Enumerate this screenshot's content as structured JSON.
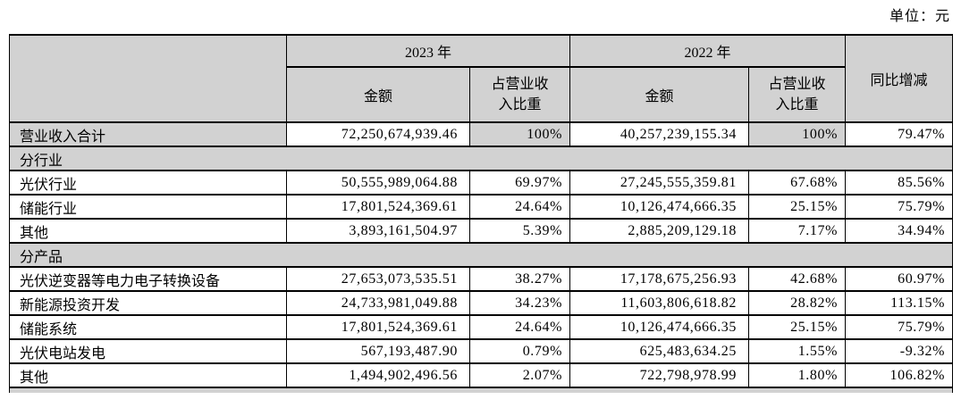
{
  "unit_label": "单位：元",
  "colors": {
    "shaded_bg": "#d2d2d2",
    "border": "#000000",
    "text": "#000000",
    "page_bg": "#ffffff"
  },
  "table": {
    "header": {
      "year_2023": "2023 年",
      "year_2022": "2022 年",
      "amount_2023": "金额",
      "share_2023": "占营业收\n入比重",
      "amount_2022": "金额",
      "share_2022": "占营业收\n入比重",
      "yoy": "同比增减"
    },
    "rows": [
      {
        "type": "data",
        "emphasis": true,
        "label": "营业收入合计",
        "amount_2023": "72,250,674,939.46",
        "share_2023": "100%",
        "amount_2022": "40,257,239,155.34",
        "share_2022": "100%",
        "yoy": "79.47%"
      },
      {
        "type": "section",
        "label": "分行业"
      },
      {
        "type": "data",
        "label": "光伏行业",
        "amount_2023": "50,555,989,064.88",
        "share_2023": "69.97%",
        "amount_2022": "27,245,555,359.81",
        "share_2022": "67.68%",
        "yoy": "85.56%"
      },
      {
        "type": "data",
        "label": "储能行业",
        "amount_2023": "17,801,524,369.61",
        "share_2023": "24.64%",
        "amount_2022": "10,126,474,666.35",
        "share_2022": "25.15%",
        "yoy": "75.79%"
      },
      {
        "type": "data",
        "label": "其他",
        "amount_2023": "3,893,161,504.97",
        "share_2023": "5.39%",
        "amount_2022": "2,885,209,129.18",
        "share_2022": "7.17%",
        "yoy": "34.94%"
      },
      {
        "type": "section",
        "label": "分产品"
      },
      {
        "type": "data",
        "label": "光伏逆变器等电力电子转换设备",
        "amount_2023": "27,653,073,535.51",
        "share_2023": "38.27%",
        "amount_2022": "17,178,675,256.93",
        "share_2022": "42.68%",
        "yoy": "60.97%"
      },
      {
        "type": "data",
        "label": "新能源投资开发",
        "amount_2023": "24,733,981,049.88",
        "share_2023": "34.23%",
        "amount_2022": "11,603,806,618.82",
        "share_2022": "28.82%",
        "yoy": "113.15%"
      },
      {
        "type": "data",
        "label": "储能系统",
        "amount_2023": "17,801,524,369.61",
        "share_2023": "24.64%",
        "amount_2022": "10,126,474,666.35",
        "share_2022": "25.15%",
        "yoy": "75.79%"
      },
      {
        "type": "data",
        "label": "光伏电站发电",
        "amount_2023": "567,193,487.90",
        "share_2023": "0.79%",
        "amount_2022": "625,483,634.25",
        "share_2022": "1.55%",
        "yoy": "-9.32%"
      },
      {
        "type": "data",
        "label": "其他",
        "amount_2023": "1,494,902,496.56",
        "share_2023": "2.07%",
        "amount_2022": "722,798,978.99",
        "share_2022": "1.80%",
        "yoy": "106.82%"
      },
      {
        "type": "section",
        "label": "",
        "cut": true
      }
    ]
  }
}
